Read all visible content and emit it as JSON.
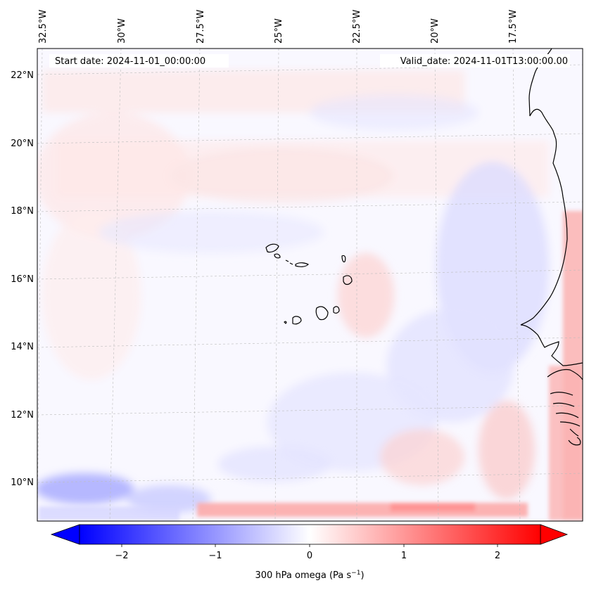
{
  "header": {
    "start_label": "Start date: 2024-11-01_00:00:00",
    "valid_label": "Valid_date: 2024-11-01T13:00:00.00"
  },
  "axes": {
    "lon_labels": [
      "32.5°W",
      "30°W",
      "27.5°W",
      "25°W",
      "22.5°W",
      "20°W",
      "17.5°W"
    ],
    "lat_labels": [
      "22°N",
      "20°N",
      "18°N",
      "16°N",
      "14°N",
      "12°N",
      "10°N"
    ]
  },
  "colorbar": {
    "ticks": [
      "−2",
      "−1",
      "0",
      "1",
      "2"
    ],
    "label_main": "300 hPa omega (Pa s",
    "label_sup": "−1",
    "label_close": ")",
    "vmin": -2.6,
    "vmax": 2.6,
    "low_color": "#0000ff",
    "mid_color": "#ffffff",
    "high_color": "#ff0000"
  },
  "chart_data": {
    "type": "heatmap",
    "variable": "300 hPa omega",
    "units": "Pa s^-1",
    "lon_range": [
      -33,
      -16
    ],
    "lat_range": [
      8.8,
      22.8
    ],
    "features": [
      "coastline of West Africa",
      "Cape Verde islands"
    ]
  }
}
